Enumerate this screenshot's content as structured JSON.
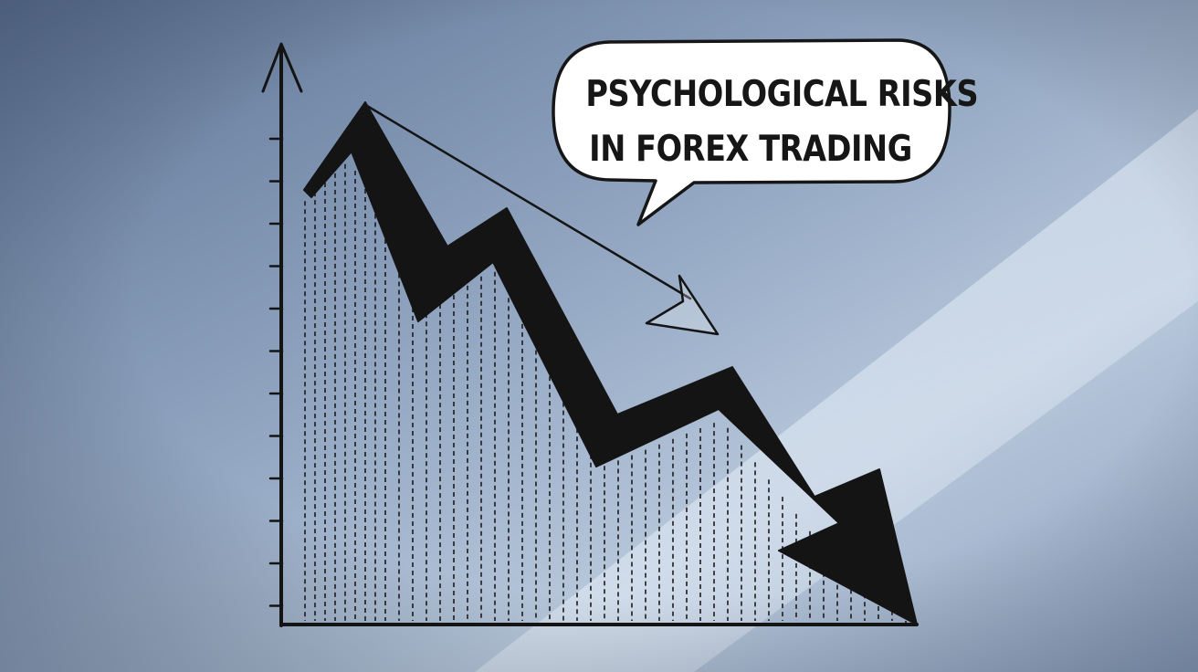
{
  "illustration": {
    "subject": "hand-drawn declining line chart with a large downward arrow",
    "icon": "downtrend-arrow-icon",
    "colors": {
      "background_dark": "#5f7596",
      "background_light": "#c2d1e2",
      "ink": "#141414",
      "bubble_fill": "#ffffff"
    }
  },
  "speech_bubble": {
    "line1": "PSYCHOLOGICAL RISKS",
    "line2": "IN FOREX TRADING"
  }
}
